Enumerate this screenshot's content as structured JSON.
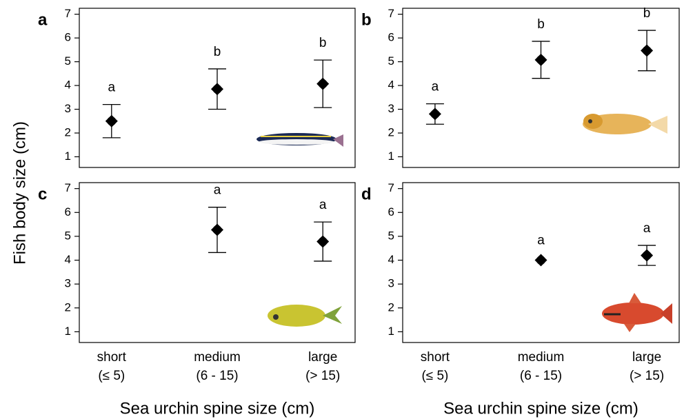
{
  "ylabel": "Fish body size (cm)",
  "chart_data": [
    {
      "type": "errorbar",
      "label": "a",
      "values": [
        2.5,
        3.85,
        4.07
      ],
      "errors": [
        0.7,
        0.85,
        1.0
      ],
      "annotations": [
        "a",
        "b",
        "b"
      ],
      "ylim": [
        0.55,
        7.25
      ],
      "yticks": [
        1,
        2,
        3,
        4,
        5,
        6,
        7
      ]
    },
    {
      "type": "errorbar",
      "label": "b",
      "values": [
        2.8,
        5.08,
        5.47
      ],
      "errors": [
        0.43,
        0.78,
        0.85
      ],
      "annotations": [
        "a",
        "b",
        "b"
      ],
      "ylim": [
        0.55,
        7.25
      ],
      "yticks": [
        1,
        2,
        3,
        4,
        5,
        6,
        7
      ]
    },
    {
      "type": "errorbar",
      "label": "c",
      "categories": [
        [
          "short",
          "(≤ 5)"
        ],
        [
          "medium",
          "(6 - 15)"
        ],
        [
          "large",
          "(> 15)"
        ]
      ],
      "values": [
        null,
        5.27,
        4.78
      ],
      "errors": [
        null,
        0.95,
        0.82
      ],
      "annotations": [
        null,
        "a",
        "a"
      ],
      "ylim": [
        0.55,
        7.25
      ],
      "yticks": [
        1,
        2,
        3,
        4,
        5,
        6,
        7
      ],
      "xlabel": "Sea urchin spine size (cm)"
    },
    {
      "type": "errorbar",
      "label": "d",
      "categories": [
        [
          "short",
          "(≤ 5)"
        ],
        [
          "medium",
          "(6 - 15)"
        ],
        [
          "large",
          "(> 15)"
        ]
      ],
      "values": [
        null,
        4.0,
        4.2
      ],
      "errors": [
        null,
        null,
        0.42
      ],
      "annotations": [
        null,
        "a",
        "a"
      ],
      "ylim": [
        0.55,
        7.25
      ],
      "yticks": [
        1,
        2,
        3,
        4,
        5,
        6,
        7
      ],
      "xlabel": "Sea urchin spine size (cm)"
    }
  ]
}
